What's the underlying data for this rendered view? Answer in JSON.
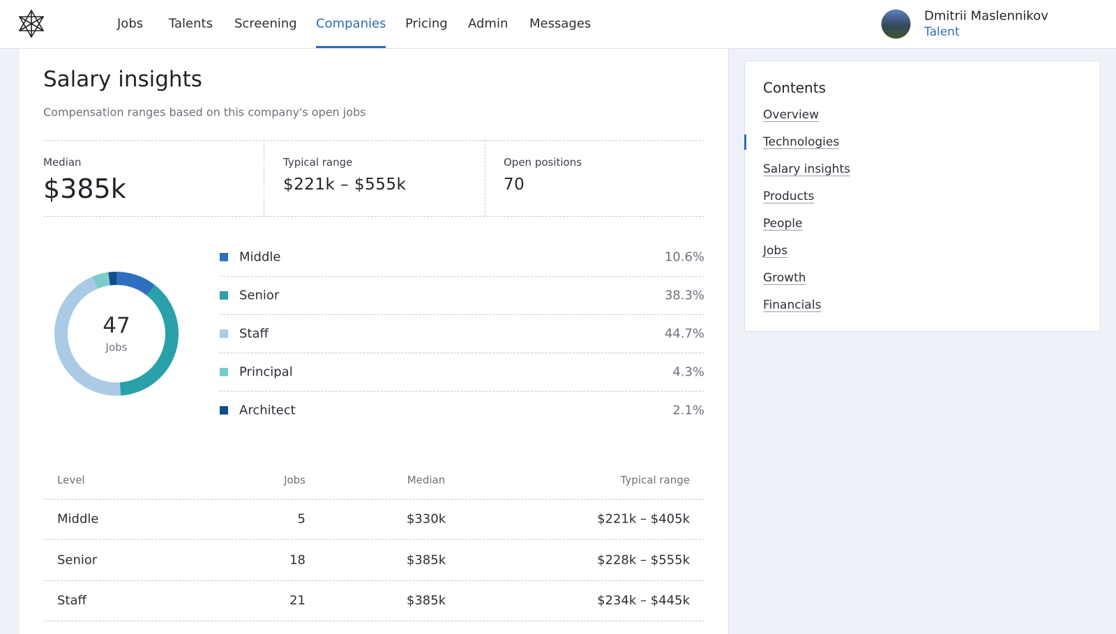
{
  "nav": {
    "items": [
      "Jobs",
      "Talents",
      "Screening",
      "Companies",
      "Pricing",
      "Admin",
      "Messages"
    ],
    "active": 3
  },
  "user": {
    "name": "Dmitrii Maslennikov",
    "role": "Talent"
  },
  "header": {
    "title": "Salary insights",
    "subtitle": "Compensation ranges based on this company's open jobs"
  },
  "stats": [
    {
      "label": "Median",
      "value": "$385k"
    },
    {
      "label": "Typical range",
      "value": "$221k – $555k"
    },
    {
      "label": "Open positions",
      "value": "70"
    }
  ],
  "chart_data": {
    "type": "donut",
    "center_value": 47,
    "center_label": "Jobs",
    "categories": [
      "Middle",
      "Senior",
      "Staff",
      "Principal",
      "Architect"
    ],
    "values": [
      10.6,
      38.3,
      44.7,
      4.3,
      2.1
    ],
    "value_labels": [
      "10.6%",
      "38.3%",
      "44.7%",
      "4.3%",
      "2.1%"
    ],
    "colors": [
      "#2f6fbf",
      "#2aa0a8",
      "#a9cbe6",
      "#7ccbcb",
      "#0f4c8a"
    ]
  },
  "table": {
    "columns": [
      "Level",
      "Jobs",
      "Median",
      "Typical range"
    ],
    "rows": [
      [
        "Middle",
        "5",
        "$330k",
        "$221k – $405k"
      ],
      [
        "Senior",
        "18",
        "$385k",
        "$228k – $555k"
      ],
      [
        "Staff",
        "21",
        "$385k",
        "$234k – $445k"
      ]
    ]
  },
  "contents": {
    "title": "Contents",
    "items": [
      "Overview",
      "Technologies",
      "Salary insights",
      "Products",
      "People",
      "Jobs",
      "Growth",
      "Financials"
    ],
    "active": 1
  }
}
